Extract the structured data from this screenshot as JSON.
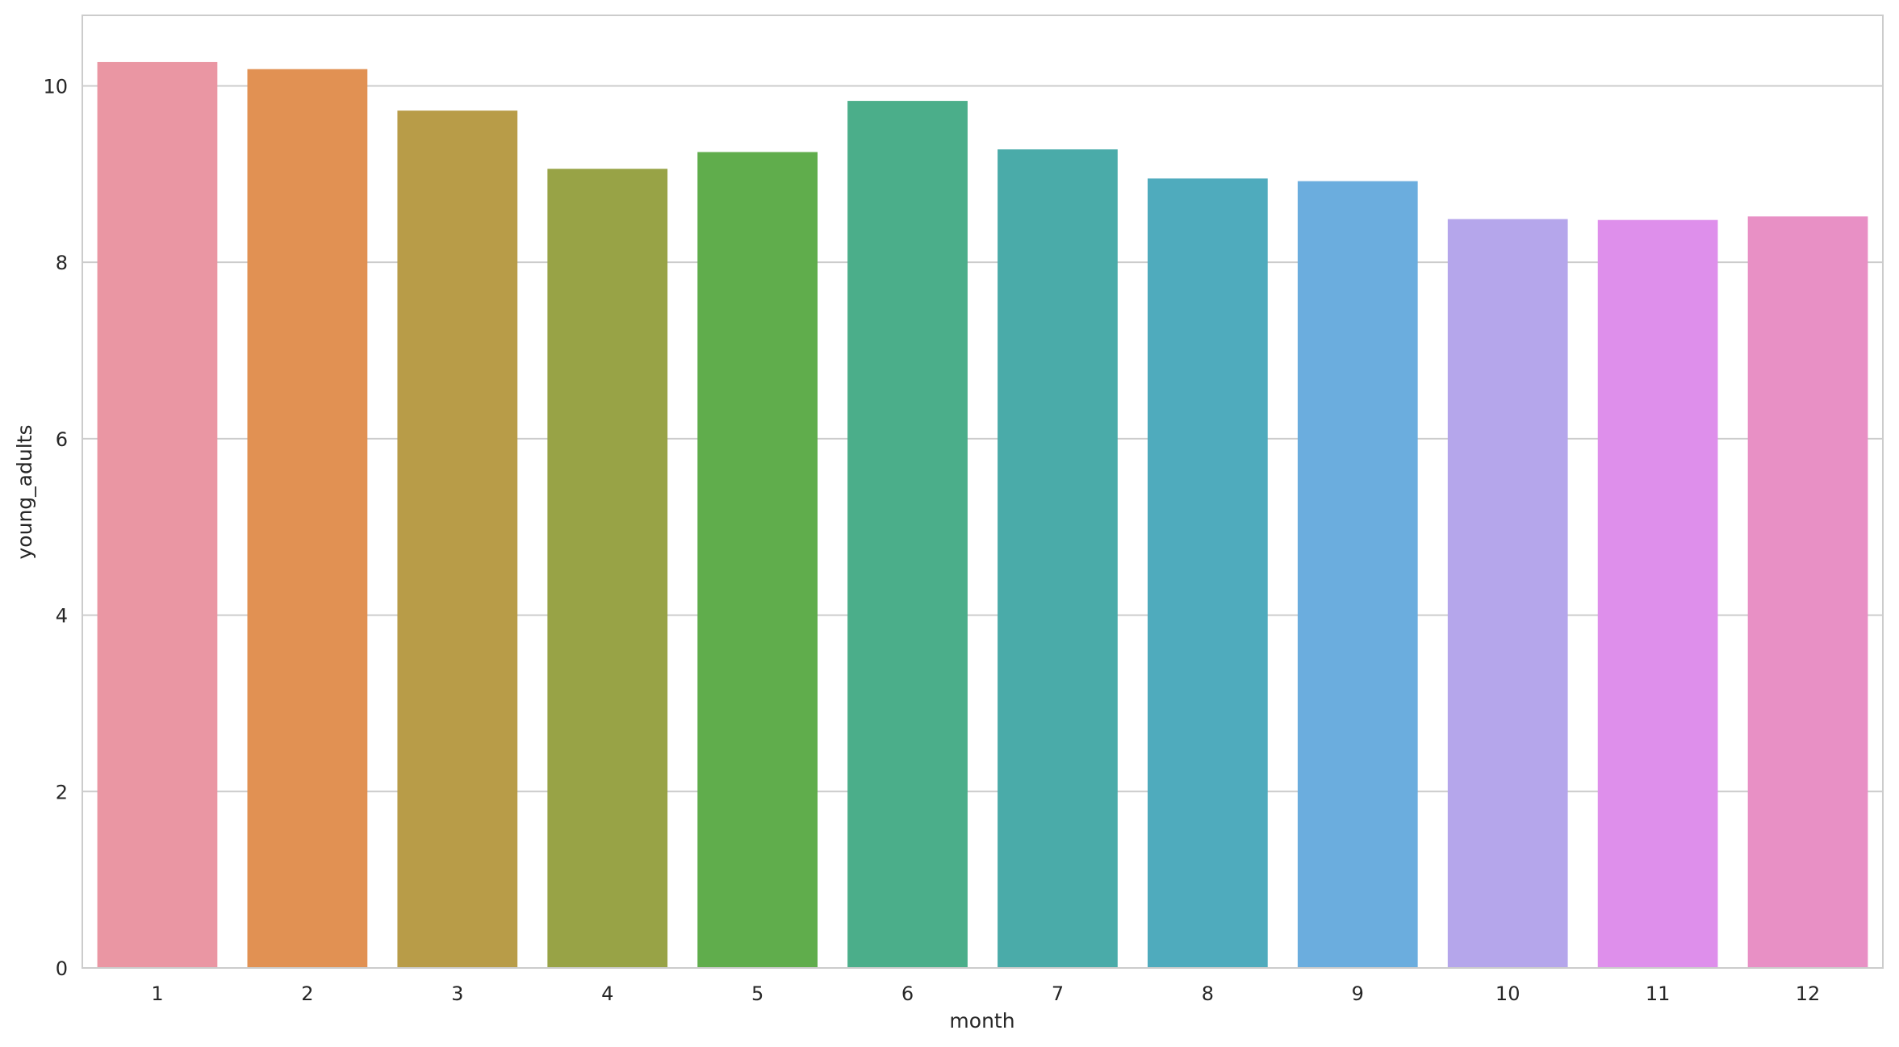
{
  "chart_data": {
    "type": "bar",
    "title": "",
    "xlabel": "month",
    "ylabel": "young_adults",
    "categories": [
      "1",
      "2",
      "3",
      "4",
      "5",
      "6",
      "7",
      "8",
      "9",
      "10",
      "11",
      "12"
    ],
    "values": [
      10.27,
      10.19,
      9.72,
      9.06,
      9.25,
      9.83,
      9.28,
      8.95,
      8.92,
      8.49,
      8.48,
      8.52
    ],
    "colors": [
      "#ea96a3",
      "#e19153",
      "#b89c48",
      "#98a346",
      "#60ad4c",
      "#4bae8a",
      "#4aaba9",
      "#4fabbd",
      "#6badde",
      "#b5a6eb",
      "#de8feb",
      "#e890c5"
    ],
    "ylim": [
      0,
      10.8
    ],
    "yticks": [
      0,
      2,
      4,
      6,
      8,
      10
    ],
    "grid": "horizontal",
    "style": {
      "background": "#ffffff",
      "grid_color": "#cccccc",
      "frame_color": "#cccccc",
      "text_color": "#262626"
    }
  }
}
